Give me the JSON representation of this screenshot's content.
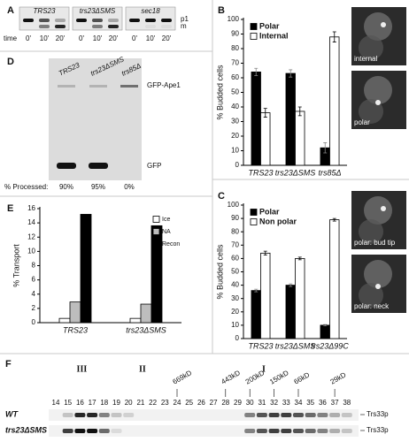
{
  "chart_data": [
    {
      "type": "bar",
      "panel": "B",
      "ylabel": "% Budded cells",
      "categories": [
        "TRS23",
        "trs23ΔSMS",
        "trs85Δ"
      ],
      "series": [
        {
          "name": "Polar",
          "color": "#000000",
          "values": [
            64,
            63,
            12
          ],
          "errors": [
            2.5,
            2.5,
            3.5
          ]
        },
        {
          "name": "Internal",
          "color": "#ffffff",
          "values": [
            36,
            37,
            88
          ],
          "errors": [
            3,
            3,
            3.5
          ]
        }
      ],
      "ylim": [
        0,
        100
      ],
      "yticks": [
        0,
        10,
        20,
        30,
        40,
        50,
        60,
        70,
        80,
        90,
        100
      ],
      "legend": "top-left",
      "image_labels": [
        "internal",
        "polar"
      ]
    },
    {
      "type": "bar",
      "panel": "C",
      "ylabel": "% Budded cells",
      "categories": [
        "TRS23",
        "trs23ΔSMS",
        "trs23Δ99C"
      ],
      "series": [
        {
          "name": "Polar",
          "color": "#000000",
          "values": [
            36,
            40,
            10
          ],
          "errors": [
            1,
            1,
            0.5
          ]
        },
        {
          "name": "Non polar",
          "color": "#ffffff",
          "values": [
            64,
            60,
            89
          ],
          "errors": [
            1.5,
            1,
            1
          ]
        }
      ],
      "ylim": [
        0,
        100
      ],
      "yticks": [
        0,
        10,
        20,
        30,
        40,
        50,
        60,
        70,
        80,
        90,
        100
      ],
      "legend": "top-left",
      "image_labels": [
        "polar: bud tip",
        "polar: neck"
      ]
    },
    {
      "type": "bar",
      "panel": "E",
      "ylabel": "% Transport",
      "categories": [
        "TRS23",
        "trs23ΔSMS"
      ],
      "series": [
        {
          "name": "Ice",
          "color": "#ffffff",
          "values": [
            0.6,
            0.6
          ]
        },
        {
          "name": "NA",
          "color": "#bdbdbd",
          "values": [
            2.9,
            2.6
          ]
        },
        {
          "name": "Recon",
          "color": "#000000",
          "values": [
            15.2,
            13.6
          ]
        }
      ],
      "ylim": [
        0,
        16
      ],
      "yticks": [
        0,
        2,
        4,
        6,
        8,
        10,
        12,
        14,
        16
      ],
      "legend": "top-right"
    }
  ],
  "blot_a": {
    "panel": "A",
    "strains": [
      "TRS23",
      "trs23ΔSMS",
      "sec18"
    ],
    "time_label": "time",
    "times": [
      "0'",
      "10'",
      "20'"
    ],
    "bands": [
      "p1",
      "m"
    ]
  },
  "blot_d": {
    "panel": "D",
    "strains": [
      "TRS23",
      "trs23ΔSMS",
      "trs85Δ"
    ],
    "bands": [
      "GFP-Ape1",
      "GFP"
    ],
    "processed_label": "% Processed:",
    "processed": [
      "90%",
      "95%",
      "0%"
    ]
  },
  "blot_f": {
    "panel": "F",
    "peaks": [
      "III",
      "II",
      "I"
    ],
    "markers": [
      "669kD",
      "443kD",
      "200kD",
      "150kD",
      "66kD",
      "29kD"
    ],
    "fractions": [
      14,
      15,
      16,
      17,
      18,
      19,
      20,
      21,
      22,
      23,
      24,
      25,
      26,
      27,
      28,
      29,
      30,
      31,
      32,
      33,
      34,
      35,
      36,
      37,
      38
    ],
    "strains": [
      "WT",
      "trs23ΔSMS"
    ],
    "protein": "Trs33p"
  }
}
